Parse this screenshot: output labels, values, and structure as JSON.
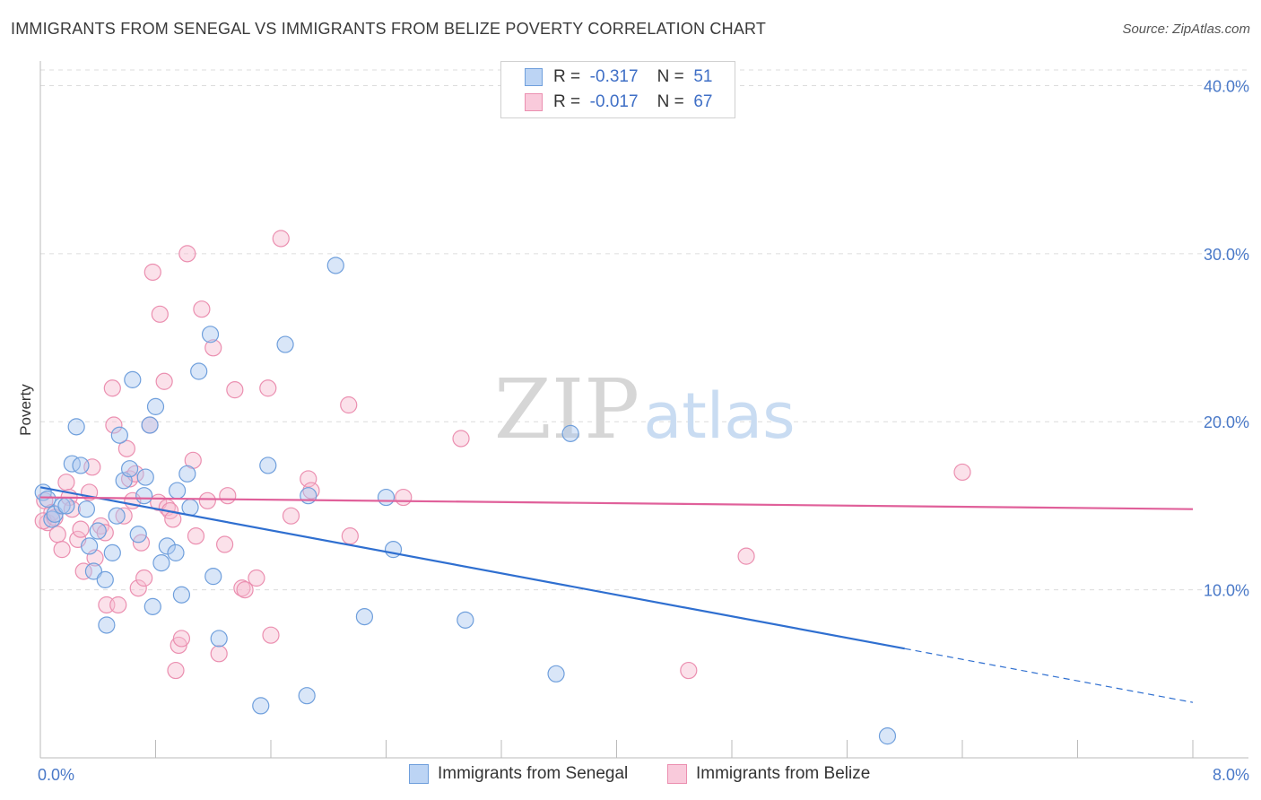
{
  "title": "IMMIGRANTS FROM SENEGAL VS IMMIGRANTS FROM BELIZE POVERTY CORRELATION CHART",
  "source": "Source: ZipAtlas.com",
  "watermark": {
    "zip": "ZIP",
    "atlas": "atlas"
  },
  "colors": {
    "senegal_fill": "#aac8f0",
    "senegal_stroke": "#6f9fdc",
    "senegal_line": "#2f6fd0",
    "belize_fill": "#f7bcd0",
    "belize_stroke": "#eb8fb0",
    "belize_line": "#e0609a",
    "tick": "#4a79c8",
    "grid": "#dcdcdc"
  },
  "legend": {
    "senegal": {
      "r_label": "R =",
      "r_value": "-0.317",
      "n_label": "N =",
      "n_value": "51"
    },
    "belize": {
      "r_label": "R =",
      "r_value": "-0.017",
      "n_label": "N =",
      "n_value": "67"
    }
  },
  "chart_data": {
    "type": "scatter",
    "xlabel": "",
    "ylabel": "Poverty",
    "xlim": [
      0,
      8
    ],
    "ylim": [
      0,
      42
    ],
    "x_tick_labels": {
      "min": "0.0%",
      "max": "8.0%"
    },
    "y_ticks": [
      {
        "value": 10,
        "label": "10.0%"
      },
      {
        "value": 20,
        "label": "20.0%"
      },
      {
        "value": 30,
        "label": "30.0%"
      },
      {
        "value": 40,
        "label": "40.0%"
      }
    ],
    "grid": true,
    "legend_position": "top-center",
    "series": [
      {
        "key": "senegal",
        "name": "Immigrants from Senegal",
        "trend": {
          "x0": 0,
          "y0": 16.1,
          "x1": 6.0,
          "y1": 6.5,
          "dash_to_x": 8.0,
          "dash_to_y": 3.3
        },
        "points": [
          [
            0.02,
            15.8
          ],
          [
            0.05,
            15.4
          ],
          [
            0.08,
            14.2
          ],
          [
            0.1,
            14.5
          ],
          [
            0.15,
            15.0
          ],
          [
            0.18,
            15.0
          ],
          [
            0.22,
            17.5
          ],
          [
            0.25,
            19.7
          ],
          [
            0.28,
            17.4
          ],
          [
            0.32,
            14.8
          ],
          [
            0.34,
            12.6
          ],
          [
            0.37,
            11.1
          ],
          [
            0.4,
            13.5
          ],
          [
            0.45,
            10.6
          ],
          [
            0.46,
            7.9
          ],
          [
            0.5,
            12.2
          ],
          [
            0.53,
            14.4
          ],
          [
            0.55,
            19.2
          ],
          [
            0.58,
            16.5
          ],
          [
            0.62,
            17.2
          ],
          [
            0.64,
            22.5
          ],
          [
            0.68,
            13.3
          ],
          [
            0.72,
            15.6
          ],
          [
            0.73,
            16.7
          ],
          [
            0.76,
            19.8
          ],
          [
            0.78,
            9.0
          ],
          [
            0.8,
            20.9
          ],
          [
            0.84,
            11.6
          ],
          [
            0.88,
            12.6
          ],
          [
            0.94,
            12.2
          ],
          [
            0.95,
            15.9
          ],
          [
            0.98,
            9.7
          ],
          [
            1.02,
            16.9
          ],
          [
            1.04,
            14.9
          ],
          [
            1.1,
            23.0
          ],
          [
            1.18,
            25.2
          ],
          [
            1.2,
            10.8
          ],
          [
            1.24,
            7.1
          ],
          [
            1.53,
            3.1
          ],
          [
            1.58,
            17.4
          ],
          [
            1.7,
            24.6
          ],
          [
            1.85,
            3.7
          ],
          [
            2.05,
            29.3
          ],
          [
            2.25,
            8.4
          ],
          [
            2.45,
            12.4
          ],
          [
            2.4,
            15.5
          ],
          [
            2.95,
            8.2
          ],
          [
            3.58,
            5.0
          ],
          [
            3.68,
            19.3
          ],
          [
            5.88,
            1.3
          ],
          [
            1.86,
            15.6
          ]
        ]
      },
      {
        "key": "belize",
        "name": "Immigrants from Belize",
        "trend": {
          "x0": 0,
          "y0": 15.5,
          "x1": 8.0,
          "y1": 14.8
        },
        "points": [
          [
            0.03,
            15.3
          ],
          [
            0.05,
            14.0
          ],
          [
            0.08,
            14.6
          ],
          [
            0.12,
            13.3
          ],
          [
            0.15,
            12.4
          ],
          [
            0.18,
            16.4
          ],
          [
            0.2,
            15.5
          ],
          [
            0.22,
            14.8
          ],
          [
            0.26,
            13.0
          ],
          [
            0.28,
            13.6
          ],
          [
            0.3,
            11.1
          ],
          [
            0.34,
            15.8
          ],
          [
            0.36,
            17.3
          ],
          [
            0.38,
            11.9
          ],
          [
            0.42,
            13.8
          ],
          [
            0.45,
            13.4
          ],
          [
            0.46,
            9.1
          ],
          [
            0.5,
            22.0
          ],
          [
            0.51,
            19.8
          ],
          [
            0.54,
            9.1
          ],
          [
            0.58,
            14.4
          ],
          [
            0.6,
            18.4
          ],
          [
            0.62,
            16.6
          ],
          [
            0.66,
            16.9
          ],
          [
            0.68,
            10.1
          ],
          [
            0.7,
            12.8
          ],
          [
            0.72,
            10.7
          ],
          [
            0.76,
            19.8
          ],
          [
            0.78,
            28.9
          ],
          [
            0.82,
            15.2
          ],
          [
            0.83,
            26.4
          ],
          [
            0.86,
            22.4
          ],
          [
            0.88,
            14.9
          ],
          [
            0.9,
            14.7
          ],
          [
            0.92,
            14.2
          ],
          [
            0.94,
            5.2
          ],
          [
            0.96,
            6.7
          ],
          [
            0.98,
            7.1
          ],
          [
            1.02,
            30.0
          ],
          [
            1.06,
            17.7
          ],
          [
            1.08,
            13.2
          ],
          [
            1.12,
            26.7
          ],
          [
            1.16,
            15.3
          ],
          [
            1.2,
            24.4
          ],
          [
            1.24,
            6.2
          ],
          [
            1.28,
            12.7
          ],
          [
            1.3,
            15.6
          ],
          [
            1.35,
            21.9
          ],
          [
            1.4,
            10.1
          ],
          [
            1.42,
            10.0
          ],
          [
            1.5,
            10.7
          ],
          [
            1.58,
            22.0
          ],
          [
            1.6,
            7.3
          ],
          [
            1.67,
            30.9
          ],
          [
            1.74,
            14.4
          ],
          [
            1.86,
            16.6
          ],
          [
            1.88,
            15.9
          ],
          [
            2.15,
            13.2
          ],
          [
            2.14,
            21.0
          ],
          [
            2.52,
            15.5
          ],
          [
            2.92,
            19.0
          ],
          [
            4.5,
            5.2
          ],
          [
            4.9,
            12.0
          ],
          [
            6.4,
            17.0
          ],
          [
            0.02,
            14.1
          ],
          [
            0.1,
            14.3
          ],
          [
            0.64,
            15.3
          ]
        ]
      }
    ]
  }
}
